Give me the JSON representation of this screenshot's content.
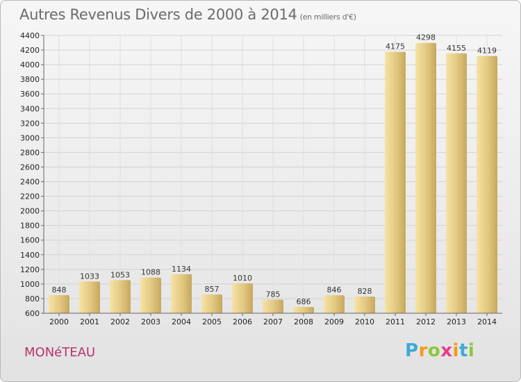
{
  "header": {
    "title": "Autres Revenus Divers de 2000 à 2014",
    "unit": "(en milliers d'€)"
  },
  "footer": {
    "city": "MONéTEAU",
    "logo_letters": [
      "P",
      "r",
      "o",
      "x",
      "i",
      "t",
      "i"
    ],
    "logo_colors": [
      "#3fa9d8",
      "#f39a1e",
      "#8cc63f",
      "#e83c8a",
      "#f39a1e",
      "#3fa9d8",
      "#8cc63f"
    ]
  },
  "chart_data": {
    "type": "bar",
    "title": "Autres Revenus Divers de 2000 à 2014",
    "subtitle": "(en milliers d'€)",
    "categories": [
      "2000",
      "2001",
      "2002",
      "2003",
      "2004",
      "2005",
      "2006",
      "2007",
      "2008",
      "2009",
      "2010",
      "2011",
      "2012",
      "2013",
      "2014"
    ],
    "values": [
      848,
      1033,
      1053,
      1088,
      1134,
      857,
      1010,
      785,
      686,
      846,
      828,
      4175,
      4298,
      4155,
      4119
    ],
    "ylim": [
      600,
      4400
    ],
    "yticks": [
      600,
      800,
      1000,
      1200,
      1400,
      1600,
      1800,
      2000,
      2200,
      2400,
      2600,
      2800,
      3000,
      3200,
      3400,
      3600,
      3800,
      4000,
      4200,
      4400
    ],
    "grid": true,
    "legend": "none",
    "bar_color_light": "#f5e0a0",
    "bar_color_dark": "#c9ac62"
  }
}
